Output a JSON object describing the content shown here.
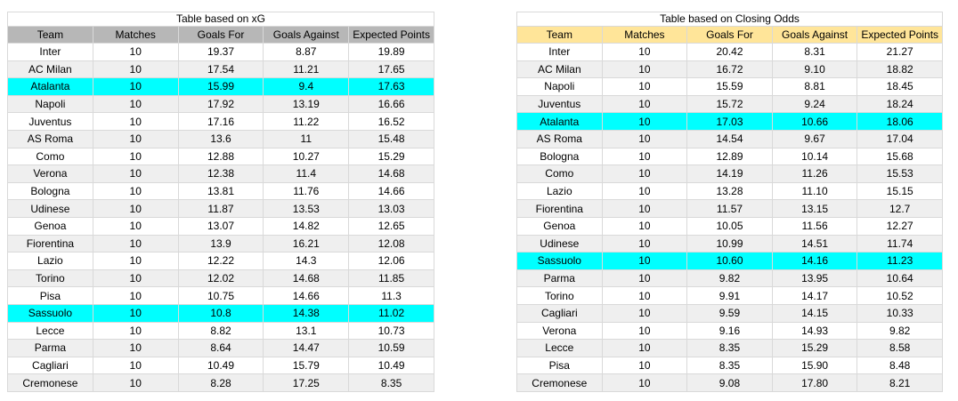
{
  "colors": {
    "xg_header_bg": "#b7b7b7",
    "odds_header_bg": "#ffe599",
    "highlight": "#00ffff",
    "row_stripe": "#efefef",
    "gridline": "#d9d9d9",
    "text": "#000000",
    "background": "#ffffff"
  },
  "chart_data": [
    {
      "type": "table",
      "title": "Table based on xG",
      "header_bg": "#b7b7b7",
      "columns": [
        "Team",
        "Matches",
        "Goals For",
        "Goals Against",
        "Expected Points"
      ],
      "rows": [
        [
          "Inter",
          "10",
          "19.37",
          "8.87",
          "19.89"
        ],
        [
          "AC Milan",
          "10",
          "17.54",
          "11.21",
          "17.65"
        ],
        [
          "Atalanta",
          "10",
          "15.99",
          "9.4",
          "17.63"
        ],
        [
          "Napoli",
          "10",
          "17.92",
          "13.19",
          "16.66"
        ],
        [
          "Juventus",
          "10",
          "17.16",
          "11.22",
          "16.52"
        ],
        [
          "AS Roma",
          "10",
          "13.6",
          "11",
          "15.48"
        ],
        [
          "Como",
          "10",
          "12.88",
          "10.27",
          "15.29"
        ],
        [
          "Verona",
          "10",
          "12.38",
          "11.4",
          "14.68"
        ],
        [
          "Bologna",
          "10",
          "13.81",
          "11.76",
          "14.66"
        ],
        [
          "Udinese",
          "10",
          "11.87",
          "13.53",
          "13.03"
        ],
        [
          "Genoa",
          "10",
          "13.07",
          "14.82",
          "12.65"
        ],
        [
          "Fiorentina",
          "10",
          "13.9",
          "16.21",
          "12.08"
        ],
        [
          "Lazio",
          "10",
          "12.22",
          "14.3",
          "12.06"
        ],
        [
          "Torino",
          "10",
          "12.02",
          "14.68",
          "11.85"
        ],
        [
          "Pisa",
          "10",
          "10.75",
          "14.66",
          "11.3"
        ],
        [
          "Sassuolo",
          "10",
          "10.8",
          "14.38",
          "11.02"
        ],
        [
          "Lecce",
          "10",
          "8.82",
          "13.1",
          "10.73"
        ],
        [
          "Parma",
          "10",
          "8.64",
          "14.47",
          "10.59"
        ],
        [
          "Cagliari",
          "10",
          "10.49",
          "15.79",
          "10.49"
        ],
        [
          "Cremonese",
          "10",
          "8.28",
          "17.25",
          "8.35"
        ]
      ],
      "highlight_row_indices": [
        2,
        15
      ],
      "highlighted_teams": [
        "Atalanta",
        "Sassuolo"
      ]
    },
    {
      "type": "table",
      "title": "Table based on Closing Odds",
      "header_bg": "#ffe599",
      "columns": [
        "Team",
        "Matches",
        "Goals For",
        "Goals Against",
        "Expected Points"
      ],
      "rows": [
        [
          "Inter",
          "10",
          "20.42",
          "8.31",
          "21.27"
        ],
        [
          "AC Milan",
          "10",
          "16.72",
          "9.10",
          "18.82"
        ],
        [
          "Napoli",
          "10",
          "15.59",
          "8.81",
          "18.45"
        ],
        [
          "Juventus",
          "10",
          "15.72",
          "9.24",
          "18.24"
        ],
        [
          "Atalanta",
          "10",
          "17.03",
          "10.66",
          "18.06"
        ],
        [
          "AS Roma",
          "10",
          "14.54",
          "9.67",
          "17.04"
        ],
        [
          "Bologna",
          "10",
          "12.89",
          "10.14",
          "15.68"
        ],
        [
          "Como",
          "10",
          "14.19",
          "11.26",
          "15.53"
        ],
        [
          "Lazio",
          "10",
          "13.28",
          "11.10",
          "15.15"
        ],
        [
          "Fiorentina",
          "10",
          "11.57",
          "13.15",
          "12.7"
        ],
        [
          "Genoa",
          "10",
          "10.05",
          "11.56",
          "12.27"
        ],
        [
          "Udinese",
          "10",
          "10.99",
          "14.51",
          "11.74"
        ],
        [
          "Sassuolo",
          "10",
          "10.60",
          "14.16",
          "11.23"
        ],
        [
          "Parma",
          "10",
          "9.82",
          "13.95",
          "10.64"
        ],
        [
          "Torino",
          "10",
          "9.91",
          "14.17",
          "10.52"
        ],
        [
          "Cagliari",
          "10",
          "9.59",
          "14.15",
          "10.33"
        ],
        [
          "Verona",
          "10",
          "9.16",
          "14.93",
          "9.82"
        ],
        [
          "Lecce",
          "10",
          "8.35",
          "15.29",
          "8.58"
        ],
        [
          "Pisa",
          "10",
          "8.35",
          "15.90",
          "8.48"
        ],
        [
          "Cremonese",
          "10",
          "9.08",
          "17.80",
          "8.21"
        ]
      ],
      "highlight_row_indices": [
        4,
        12
      ],
      "highlighted_teams": [
        "Atalanta",
        "Sassuolo"
      ]
    }
  ]
}
